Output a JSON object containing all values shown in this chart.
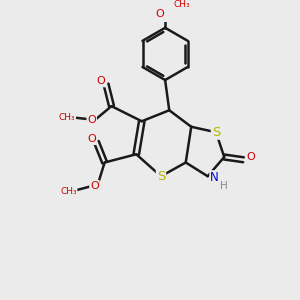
{
  "bg_color": "#ebebeb",
  "bond_color": "#1a1a1a",
  "bond_width": 1.8,
  "S_color": "#b8b800",
  "N_color": "#0000cc",
  "O_color": "#cc0000",
  "fig_size": [
    3.0,
    3.0
  ],
  "dpi": 100,
  "xlim": [
    0,
    10
  ],
  "ylim": [
    0,
    10
  ]
}
